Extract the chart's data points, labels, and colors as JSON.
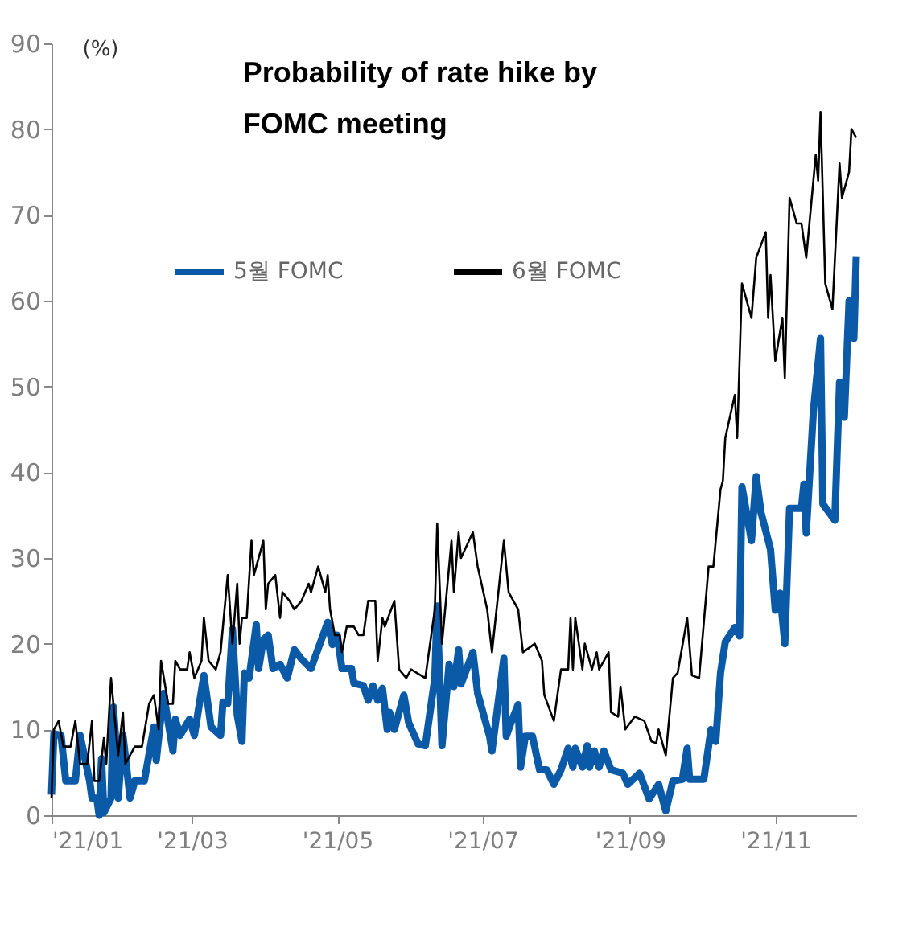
{
  "chart_data": {
    "type": "line",
    "title": [
      "Probability of rate hike by",
      "FOMC meeting"
    ],
    "ylabel": "(%)",
    "xlim": [
      "2021-01-01",
      "2021-12-05"
    ],
    "xticks": [
      {
        "value": "2021-01-01",
        "label": "'21/01"
      },
      {
        "value": "2021-03-01",
        "label": "'21/03"
      },
      {
        "value": "2021-05-01",
        "label": "'21/05"
      },
      {
        "value": "2021-07-01",
        "label": "'21/07"
      },
      {
        "value": "2021-09-01",
        "label": "'21/09"
      },
      {
        "value": "2021-11-01",
        "label": "'21/11"
      }
    ],
    "ylim": [
      0,
      90
    ],
    "yticks": [
      0,
      10,
      20,
      30,
      40,
      50,
      60,
      70,
      80,
      90
    ],
    "grid": false,
    "legend": "top",
    "line_style": "solid",
    "marker": "none",
    "series": [
      {
        "name": "5월 FOMC",
        "color": "#0b5aa8",
        "x": [
          "2021-01-01",
          "2021-01-02",
          "2021-01-05",
          "2021-01-07",
          "2021-01-11",
          "2021-01-13",
          "2021-01-17",
          "2021-01-18",
          "2021-01-20",
          "2021-01-21",
          "2021-01-22",
          "2021-01-23",
          "2021-01-26",
          "2021-01-27",
          "2021-01-28",
          "2021-01-29",
          "2021-01-31",
          "2021-02-03",
          "2021-02-05",
          "2021-02-09",
          "2021-02-13",
          "2021-02-14",
          "2021-02-17",
          "2021-02-21",
          "2021-02-22",
          "2021-02-24",
          "2021-02-28",
          "2021-03-02",
          "2021-03-06",
          "2021-03-09",
          "2021-03-13",
          "2021-03-14",
          "2021-03-16",
          "2021-03-18",
          "2021-03-20",
          "2021-03-22",
          "2021-03-23",
          "2021-03-25",
          "2021-03-28",
          "2021-03-29",
          "2021-03-31",
          "2021-04-02",
          "2021-04-04",
          "2021-04-07",
          "2021-04-10",
          "2021-04-13",
          "2021-04-16",
          "2021-04-20",
          "2021-04-27",
          "2021-04-29",
          "2021-05-01",
          "2021-05-03",
          "2021-05-07",
          "2021-05-08",
          "2021-05-12",
          "2021-05-14",
          "2021-05-16",
          "2021-05-18",
          "2021-05-20",
          "2021-05-22",
          "2021-05-23",
          "2021-05-25",
          "2021-05-29",
          "2021-05-31",
          "2021-06-04",
          "2021-06-07",
          "2021-06-11",
          "2021-06-12",
          "2021-06-14",
          "2021-06-17",
          "2021-06-19",
          "2021-06-21",
          "2021-06-22",
          "2021-06-27",
          "2021-06-29",
          "2021-07-04",
          "2021-07-05",
          "2021-07-10",
          "2021-07-11",
          "2021-07-13",
          "2021-07-16",
          "2021-07-17",
          "2021-07-19",
          "2021-07-22",
          "2021-07-25",
          "2021-07-28",
          "2021-07-31",
          "2021-08-03",
          "2021-08-06",
          "2021-08-08",
          "2021-08-09",
          "2021-08-12",
          "2021-08-14",
          "2021-08-15",
          "2021-08-17",
          "2021-08-19",
          "2021-08-21",
          "2021-08-24",
          "2021-08-29",
          "2021-08-31",
          "2021-09-05",
          "2021-09-09",
          "2021-09-13",
          "2021-09-16",
          "2021-09-19",
          "2021-09-23",
          "2021-09-25",
          "2021-09-26",
          "2021-10-02",
          "2021-10-05",
          "2021-10-07",
          "2021-10-09",
          "2021-10-11",
          "2021-10-15",
          "2021-10-17",
          "2021-10-18",
          "2021-10-22",
          "2021-10-24",
          "2021-10-26",
          "2021-10-30",
          "2021-11-01",
          "2021-11-03",
          "2021-11-05",
          "2021-11-07",
          "2021-11-12",
          "2021-11-13",
          "2021-11-14",
          "2021-11-17",
          "2021-11-20",
          "2021-11-21",
          "2021-11-26",
          "2021-11-27",
          "2021-11-28",
          "2021-11-30",
          "2021-12-02",
          "2021-12-04",
          "2021-12-05"
        ],
        "values": [
          2.4,
          9.5,
          9.3,
          4,
          4,
          9.3,
          4,
          2,
          2,
          0,
          6.6,
          0.3,
          2,
          12.6,
          8.6,
          2,
          9.3,
          2,
          4,
          4,
          10.3,
          6.4,
          14.2,
          7.5,
          11.2,
          9.3,
          11.2,
          9.3,
          16.3,
          10.3,
          9.3,
          13.2,
          13,
          21.7,
          11.7,
          8.6,
          16.6,
          16,
          22.2,
          17.1,
          20.5,
          21,
          17.1,
          17.6,
          16,
          19.3,
          18.2,
          17.1,
          22.5,
          19.9,
          21,
          17.1,
          17.1,
          15.4,
          15.1,
          13.4,
          15.1,
          13.4,
          14.8,
          10,
          12,
          10,
          14,
          10.8,
          8.3,
          8.1,
          16,
          24.4,
          8.1,
          17.6,
          15,
          19.3,
          15.3,
          19,
          14.2,
          9.2,
          7.5,
          18.3,
          9.2,
          10.8,
          12.9,
          5.6,
          9.2,
          9.2,
          5.3,
          5.3,
          3.6,
          5.3,
          7.8,
          5.6,
          7.8,
          5.6,
          8.1,
          5.6,
          7.5,
          5.6,
          7.5,
          5.3,
          4.9,
          3.6,
          4.9,
          1.9,
          3.6,
          0.5,
          4,
          4.2,
          7.8,
          4.2,
          4.2,
          10,
          8.6,
          16.6,
          20.2,
          21.9,
          20.9,
          38.3,
          32,
          39.5,
          35.3,
          31,
          23.9,
          25.9,
          20,
          35.8,
          35.8,
          38.6,
          32.9,
          47.1,
          55.6,
          36.3,
          34.4,
          42.5,
          50.5,
          46.4,
          60,
          55.6,
          65.1
        ]
      },
      {
        "name": "6월 FOMC",
        "color": "#000000",
        "x": [
          "2021-01-01",
          "2021-01-02",
          "2021-01-04",
          "2021-01-06",
          "2021-01-09",
          "2021-01-11",
          "2021-01-13",
          "2021-01-16",
          "2021-01-18",
          "2021-01-19",
          "2021-01-21",
          "2021-01-23",
          "2021-01-24",
          "2021-01-26",
          "2021-01-29",
          "2021-01-31",
          "2021-02-01",
          "2021-02-05",
          "2021-02-08",
          "2021-02-11",
          "2021-02-13",
          "2021-02-15",
          "2021-02-16",
          "2021-02-19",
          "2021-02-21",
          "2021-02-22",
          "2021-02-24",
          "2021-02-27",
          "2021-02-28",
          "2021-03-02",
          "2021-03-05",
          "2021-03-06",
          "2021-03-08",
          "2021-03-11",
          "2021-03-13",
          "2021-03-15",
          "2021-03-16",
          "2021-03-18",
          "2021-03-20",
          "2021-03-21",
          "2021-03-22",
          "2021-03-24",
          "2021-03-26",
          "2021-03-27",
          "2021-03-31",
          "2021-04-01",
          "2021-04-02",
          "2021-04-05",
          "2021-04-07",
          "2021-04-08",
          "2021-04-11",
          "2021-04-13",
          "2021-04-16",
          "2021-04-19",
          "2021-04-20",
          "2021-04-23",
          "2021-04-26",
          "2021-04-27",
          "2021-04-28",
          "2021-04-30",
          "2021-05-02",
          "2021-05-03",
          "2021-05-05",
          "2021-05-08",
          "2021-05-10",
          "2021-05-12",
          "2021-05-14",
          "2021-05-17",
          "2021-05-18",
          "2021-05-20",
          "2021-05-21",
          "2021-05-25",
          "2021-05-27",
          "2021-05-30",
          "2021-06-01",
          "2021-06-07",
          "2021-06-11",
          "2021-06-12",
          "2021-06-14",
          "2021-06-18",
          "2021-06-19",
          "2021-06-21",
          "2021-06-22",
          "2021-06-27",
          "2021-06-29",
          "2021-07-03",
          "2021-07-05",
          "2021-07-10",
          "2021-07-12",
          "2021-07-16",
          "2021-07-18",
          "2021-07-23",
          "2021-07-26",
          "2021-07-27",
          "2021-07-31",
          "2021-08-03",
          "2021-08-06",
          "2021-08-07",
          "2021-08-08",
          "2021-08-09",
          "2021-08-12",
          "2021-08-13",
          "2021-08-16",
          "2021-08-18",
          "2021-08-19",
          "2021-08-23",
          "2021-08-24",
          "2021-08-27",
          "2021-08-28",
          "2021-08-30",
          "2021-09-03",
          "2021-09-07",
          "2021-09-10",
          "2021-09-12",
          "2021-09-13",
          "2021-09-16",
          "2021-09-19",
          "2021-09-21",
          "2021-09-25",
          "2021-09-27",
          "2021-09-30",
          "2021-10-04",
          "2021-10-06",
          "2021-10-09",
          "2021-10-10",
          "2021-10-11",
          "2021-10-15",
          "2021-10-16",
          "2021-10-18",
          "2021-10-22",
          "2021-10-24",
          "2021-10-28",
          "2021-10-29",
          "2021-10-30",
          "2021-11-01",
          "2021-11-04",
          "2021-11-05",
          "2021-11-07",
          "2021-11-10",
          "2021-11-12",
          "2021-11-14",
          "2021-11-18",
          "2021-11-19",
          "2021-11-20",
          "2021-11-22",
          "2021-11-25",
          "2021-11-28",
          "2021-11-29",
          "2021-12-02",
          "2021-12-03",
          "2021-12-05"
        ],
        "values": [
          2,
          10,
          11,
          8,
          8,
          11,
          6,
          6,
          11,
          4,
          4,
          9,
          6,
          16,
          7,
          12,
          6,
          8,
          8,
          13,
          14,
          10,
          18,
          13,
          13,
          18,
          17,
          17,
          19,
          16,
          18,
          23,
          18,
          17,
          19,
          25,
          28,
          20,
          27,
          20,
          23,
          23,
          32,
          28,
          32,
          24,
          27,
          28,
          23,
          26,
          25,
          24,
          25,
          27,
          26,
          29,
          26,
          28,
          24,
          21,
          21,
          19,
          22,
          22,
          21,
          21,
          25,
          25,
          18,
          23,
          22,
          25,
          17,
          16,
          17,
          16,
          24,
          34,
          20,
          32,
          26,
          33,
          30,
          33,
          29,
          24,
          19,
          32,
          26,
          24,
          19,
          20,
          18,
          14,
          11,
          17,
          17,
          23,
          17,
          23,
          17,
          20,
          17,
          19,
          17,
          19,
          12,
          11.5,
          15,
          10,
          11.5,
          11,
          8.6,
          8.4,
          10,
          7,
          16,
          16.6,
          23,
          16.3,
          16,
          29,
          29,
          38,
          39,
          44,
          49,
          44,
          62,
          58,
          65,
          68,
          58,
          63,
          53,
          58,
          51,
          72,
          69,
          69,
          65,
          77,
          74,
          82,
          62,
          59,
          76,
          72,
          75,
          80,
          79
        ]
      }
    ]
  }
}
